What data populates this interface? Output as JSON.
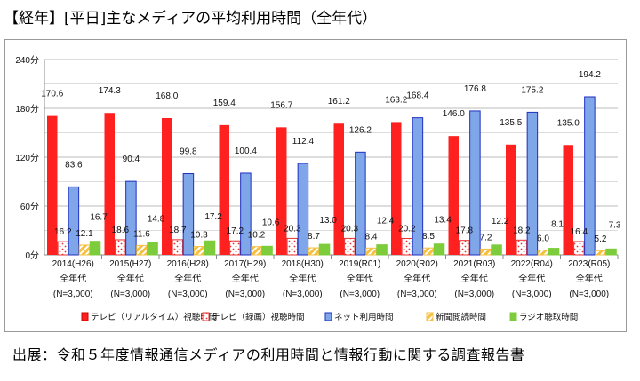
{
  "title": "【経年】[平日]主なメディアの平均利用時間（全年代）",
  "footer": "出展：令和５年度情報通信メディアの利用時間と情報行動に関する調査報告書",
  "chart_data": {
    "type": "bar",
    "title": "【経年】[平日]主なメディアの平均利用時間（全年代）",
    "categories": [
      "2014(H26)",
      "2015(H27)",
      "2016(H28)",
      "2017(H29)",
      "2018(H30)",
      "2019(R01)",
      "2020(R02)",
      "2021(R03)",
      "2022(R04)",
      "2023(R05)"
    ],
    "category_sub1": "全年代",
    "category_sub2": "(N=3,000)",
    "yticks": [
      "0分",
      "60分",
      "120分",
      "180分",
      "240分"
    ],
    "ytick_values": [
      0,
      60,
      120,
      180,
      240
    ],
    "ylim": [
      0,
      240
    ],
    "legend_position": "bottom",
    "series": [
      {
        "name": "テレビ（リアルタイム）視聴時間",
        "color": "#ff2020",
        "values": [
          170.6,
          174.3,
          168.0,
          159.4,
          156.7,
          161.2,
          163.2,
          146.0,
          135.5,
          135.0
        ]
      },
      {
        "name": "テレビ（録画）視聴時間",
        "color": "#e83030",
        "values": [
          16.2,
          18.6,
          18.7,
          17.2,
          20.3,
          20.3,
          20.2,
          17.8,
          18.2,
          16.4
        ]
      },
      {
        "name": "ネット利用時間",
        "color": "#7fa6e8",
        "values": [
          83.6,
          90.4,
          99.8,
          100.4,
          112.4,
          126.2,
          168.4,
          176.8,
          175.2,
          194.2
        ]
      },
      {
        "name": "新聞閲読時間",
        "color": "#f5c040",
        "values": [
          12.1,
          11.6,
          10.3,
          10.2,
          8.7,
          8.4,
          8.5,
          7.2,
          6.0,
          5.2
        ]
      },
      {
        "name": "ラジオ聴取時間",
        "color": "#7ccc3c",
        "values": [
          16.7,
          14.8,
          17.2,
          10.6,
          13.0,
          12.4,
          13.4,
          12.2,
          8.1,
          7.3
        ]
      }
    ]
  }
}
